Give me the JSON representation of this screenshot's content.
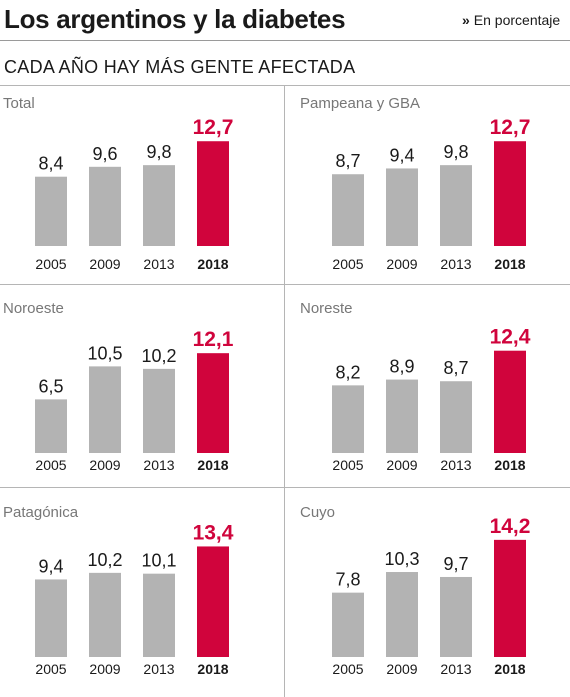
{
  "header": {
    "title": "Los argentinos y la diabetes",
    "unit_arrow": "»",
    "unit_text": "En porcentaje",
    "subtitle": "CADA AÑO HAY MÁS GENTE AFECTADA"
  },
  "colors": {
    "bar_default": "#b3b3b3",
    "bar_highlight": "#d0043c",
    "text": "#1a1a1a",
    "region_label": "#777777"
  },
  "chart_data": [
    {
      "type": "bar",
      "title": "Total",
      "categories": [
        "2005",
        "2009",
        "2013",
        "2018"
      ],
      "values": [
        8.4,
        9.6,
        9.8,
        12.7
      ],
      "value_labels": [
        "8,4",
        "9,6",
        "9,8",
        "12,7"
      ],
      "highlight": "2018",
      "ylim": [
        0,
        12.7
      ]
    },
    {
      "type": "bar",
      "title": "Pampeana y GBA",
      "categories": [
        "2005",
        "2009",
        "2013",
        "2018"
      ],
      "values": [
        8.7,
        9.4,
        9.8,
        12.7
      ],
      "value_labels": [
        "8,7",
        "9,4",
        "9,8",
        "12,7"
      ],
      "highlight": "2018",
      "ylim": [
        0,
        12.7
      ]
    },
    {
      "type": "bar",
      "title": "Noroeste",
      "categories": [
        "2005",
        "2009",
        "2013",
        "2018"
      ],
      "values": [
        6.5,
        10.5,
        10.2,
        12.1
      ],
      "value_labels": [
        "6,5",
        "10,5",
        "10,2",
        "12,1"
      ],
      "highlight": "2018",
      "ylim": [
        0,
        12.7
      ]
    },
    {
      "type": "bar",
      "title": "Noreste",
      "categories": [
        "2005",
        "2009",
        "2013",
        "2018"
      ],
      "values": [
        8.2,
        8.9,
        8.7,
        12.4
      ],
      "value_labels": [
        "8,2",
        "8,9",
        "8,7",
        "12,4"
      ],
      "highlight": "2018",
      "ylim": [
        0,
        12.7
      ]
    },
    {
      "type": "bar",
      "title": "Patagónica",
      "categories": [
        "2005",
        "2009",
        "2013",
        "2018"
      ],
      "values": [
        9.4,
        10.2,
        10.1,
        13.4
      ],
      "value_labels": [
        "9,4",
        "10,2",
        "10,1",
        "13,4"
      ],
      "highlight": "2018",
      "ylim": [
        0,
        13.4
      ]
    },
    {
      "type": "bar",
      "title": "Cuyo",
      "categories": [
        "2005",
        "2009",
        "2013",
        "2018"
      ],
      "values": [
        7.8,
        10.3,
        9.7,
        14.2
      ],
      "value_labels": [
        "7,8",
        "10,3",
        "9,7",
        "14,2"
      ],
      "highlight": "2018",
      "ylim": [
        0,
        14.2
      ]
    }
  ]
}
